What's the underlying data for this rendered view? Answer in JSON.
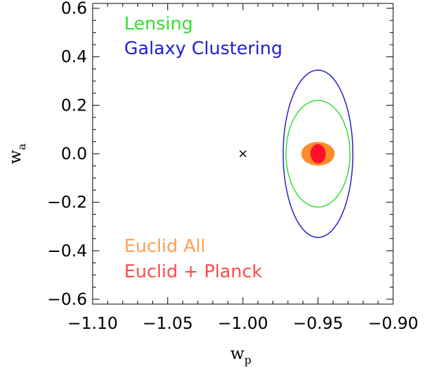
{
  "chart_data": {
    "type": "ellipse-contour",
    "xlabel": "w",
    "xlabel_subscript": "p",
    "ylabel": "w",
    "ylabel_subscript": "a",
    "xlim": [
      -1.1,
      -0.9
    ],
    "ylim": [
      -0.62,
      0.62
    ],
    "x_ticks": [
      -1.1,
      -1.05,
      -1.0,
      -0.95,
      -0.9
    ],
    "x_tick_labels": [
      "−1.10",
      "−1.05",
      "−1.00",
      "−0.95",
      "−0.90"
    ],
    "y_ticks": [
      0.6,
      0.4,
      0.2,
      0.0,
      -0.2,
      -0.4,
      -0.6
    ],
    "y_tick_labels": [
      "0.6",
      "0.4",
      "0.2",
      "0.0",
      "−0.2",
      "−0.4",
      "−0.6"
    ],
    "grid": false,
    "reference_marker": {
      "symbol": "×",
      "x": -1.0,
      "y": 0.0
    },
    "series": [
      {
        "name": "Lensing",
        "color": "#33dd33",
        "style": "outline",
        "center": [
          -0.95,
          0.0
        ],
        "semi_x": 0.0213,
        "semi_y": 0.22
      },
      {
        "name": "Galaxy Clustering",
        "color": "#2222cc",
        "style": "outline",
        "center": [
          -0.95,
          0.0
        ],
        "semi_x": 0.0232,
        "semi_y": 0.345
      },
      {
        "name": "Euclid All",
        "color": "#ff8c2a",
        "style": "filled",
        "center": [
          -0.95,
          0.0
        ],
        "semi_x": 0.0111,
        "semi_y": 0.049
      },
      {
        "name": "Euclid + Planck",
        "color": "#ff0f2a",
        "style": "filled",
        "center": [
          -0.95,
          0.0
        ],
        "semi_x": 0.0051,
        "semi_y": 0.04
      }
    ],
    "legend_top": [
      "Lensing",
      "Galaxy Clustering"
    ],
    "legend_bottom": [
      "Euclid All",
      "Euclid + Planck"
    ],
    "legend_colors": {
      "Lensing": "#33dd33",
      "Galaxy Clustering": "#2222cc",
      "Euclid All": "#ffa050",
      "Euclid + Planck": "#ff4a4a"
    }
  }
}
